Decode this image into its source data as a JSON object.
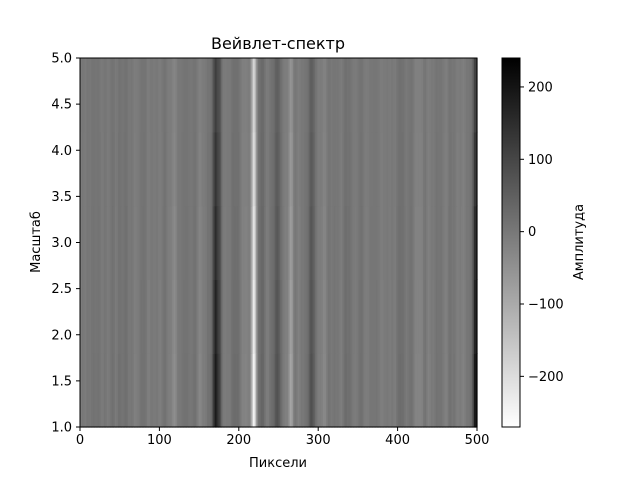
{
  "chart_data": {
    "type": "heatmap",
    "title": "Вейвлет-спектр",
    "xlabel": "Пиксели",
    "ylabel": "Масштаб",
    "xlim": [
      0,
      500
    ],
    "ylim": [
      1.0,
      5.0
    ],
    "x_ticks": [
      0,
      100,
      200,
      300,
      400,
      500
    ],
    "x_tick_labels": [
      "0",
      "100",
      "200",
      "300",
      "400",
      "500"
    ],
    "y_ticks": [
      1.0,
      1.5,
      2.0,
      2.5,
      3.0,
      3.5,
      4.0,
      4.5,
      5.0
    ],
    "y_tick_labels": [
      "1.0",
      "1.5",
      "2.0",
      "2.5",
      "3.0",
      "3.5",
      "4.0",
      "4.5",
      "5.0"
    ],
    "colormap": "gray_r",
    "colorbar": {
      "label": "Амплитуда",
      "vmin": -270,
      "vmax": 240,
      "ticks": [
        200,
        100,
        0,
        -100,
        -200
      ],
      "tick_labels": [
        "200",
        "100",
        "0",
        "−100",
        "−200"
      ]
    },
    "features": [
      {
        "x": 170,
        "value": 210,
        "width": 4,
        "decay": 0.45
      },
      {
        "x": 218,
        "value": -265,
        "width": 3,
        "decay": 0.3
      },
      {
        "x": 228,
        "value": 40,
        "width": 4,
        "decay": 0.3
      },
      {
        "x": 247,
        "value": 80,
        "width": 4,
        "decay": 0.4
      },
      {
        "x": 265,
        "value": -95,
        "width": 3,
        "decay": 0.45
      },
      {
        "x": 290,
        "value": 60,
        "width": 4,
        "decay": 0.4
      },
      {
        "x": 305,
        "value": -35,
        "width": 4,
        "decay": 0.5
      },
      {
        "x": 118,
        "value": -40,
        "width": 3,
        "decay": 0.5
      },
      {
        "x": 150,
        "value": -30,
        "width": 3,
        "decay": 0.5
      },
      {
        "x": 175,
        "value": 70,
        "width": 2,
        "decay": 0.2
      },
      {
        "x": 497,
        "value": 235,
        "width": 3,
        "decay": 0.5
      }
    ]
  }
}
